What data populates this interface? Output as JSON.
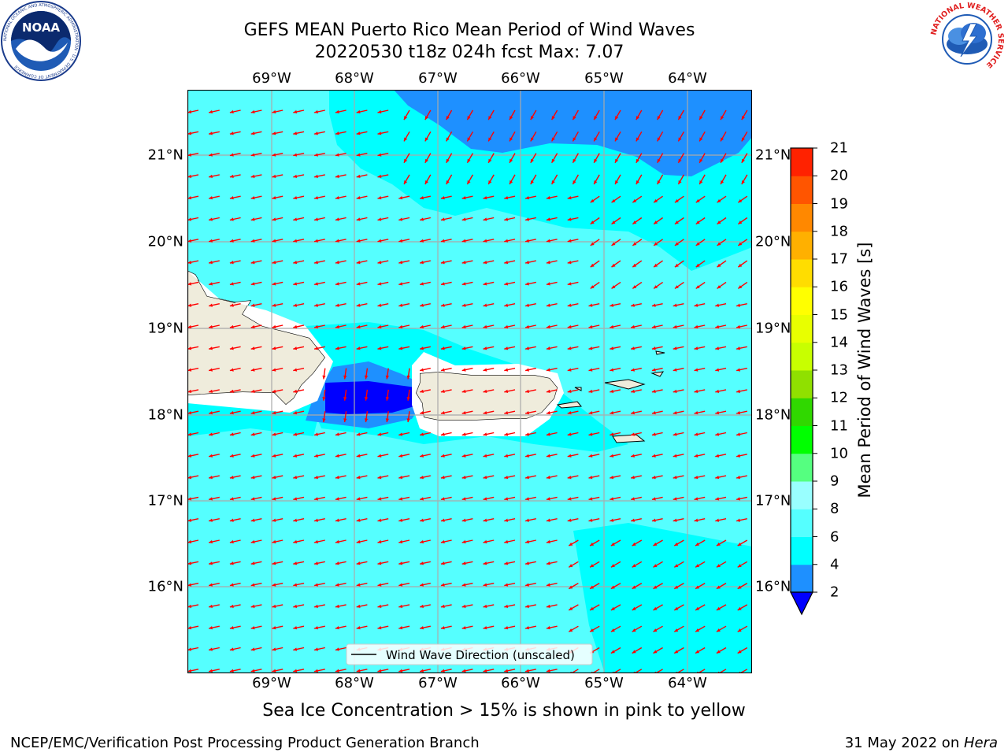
{
  "header": {
    "title_line1": "GEFS MEAN Puerto Rico Mean Period of Wind Waves",
    "title_line2": "20220530 t18z 024h fcst   Max: 7.07"
  },
  "logos": {
    "left": {
      "name": "NOAA",
      "ring_text": "NATIONAL OCEANIC AND ATMOSPHERIC ADMINISTRATION · U.S. DEPARTMENT OF COMMERCE"
    },
    "right": {
      "name": "NATIONAL WEATHER SERVICE"
    }
  },
  "map": {
    "lon_labels": [
      "69°W",
      "68°W",
      "67°W",
      "66°W",
      "65°W",
      "64°W"
    ],
    "lat_labels": [
      "21°N",
      "20°N",
      "19°N",
      "18°N",
      "17°N",
      "16°N"
    ],
    "legend_label": "Wind Wave Direction (unscaled)",
    "arrow_color": "#ff0000",
    "land_color": "#efecdc"
  },
  "colorbar": {
    "label": "Mean Period of Wind Waves [s]",
    "ticks": [
      "2",
      "4",
      "6",
      "8",
      "9",
      "10",
      "11",
      "12",
      "13",
      "14",
      "15",
      "16",
      "17",
      "18",
      "19",
      "20",
      "21"
    ],
    "colors": [
      "#0000ff",
      "#1e90ff",
      "#00ffff",
      "#55ffff",
      "#99ffff",
      "#55ff80",
      "#00ff00",
      "#30d800",
      "#90e000",
      "#c8ff00",
      "#e8ff00",
      "#ffff00",
      "#ffdd00",
      "#ffb000",
      "#ff8800",
      "#ff5500",
      "#ff2200",
      "#ff0000"
    ],
    "under_color": "#0000ff"
  },
  "note": "Sea Ice Concentration > 15% is shown in pink to yellow",
  "footer": {
    "left": "NCEP/EMC/Verification Post Processing Product Generation Branch",
    "date": "31 May 2022 on ",
    "machine": "Hera"
  }
}
